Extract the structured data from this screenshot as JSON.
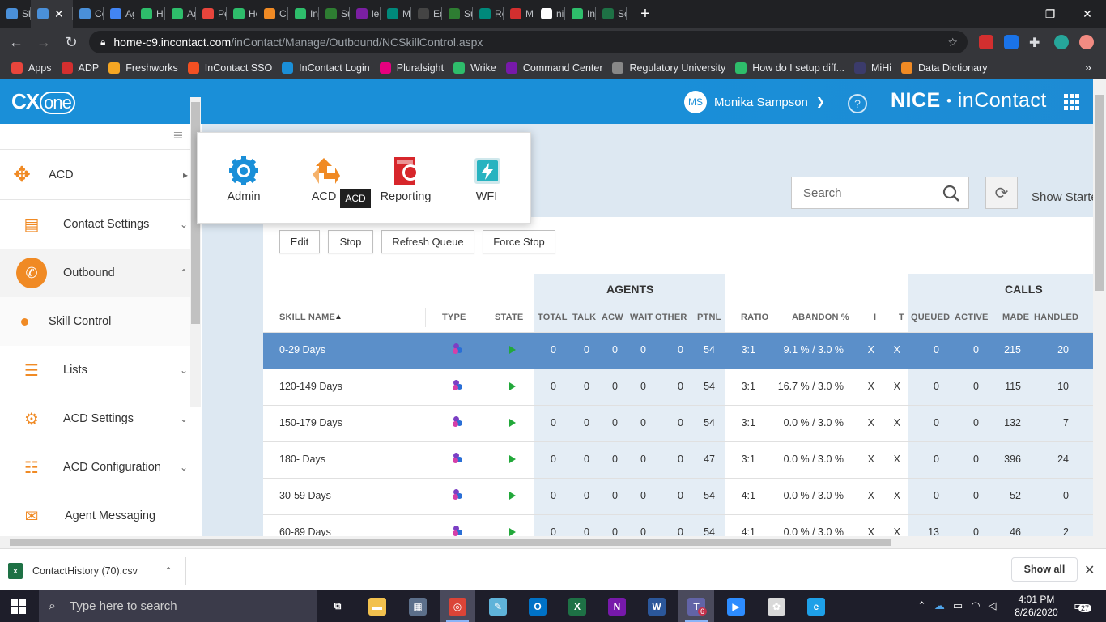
{
  "browser": {
    "tabs": [
      {
        "label": "Skil",
        "color": "#4a90d9",
        "active": false
      },
      {
        "label": "",
        "color": "#4a90d9",
        "active": true
      },
      {
        "label": "Cor",
        "color": "#4a90d9",
        "active": false
      },
      {
        "label": "Age",
        "color": "#4285f4",
        "active": false
      },
      {
        "label": "Hel",
        "color": "#2ebd6b",
        "active": false
      },
      {
        "label": "Adi",
        "color": "#2ebd6b",
        "active": false
      },
      {
        "label": "Per",
        "color": "#e8453c",
        "active": false
      },
      {
        "label": "Hor",
        "color": "#2ebd6b",
        "active": false
      },
      {
        "label": "Cre",
        "color": "#f08a24",
        "active": false
      },
      {
        "label": "Inb",
        "color": "#2ebd6b",
        "active": false
      },
      {
        "label": "Sup",
        "color": "#2e7d32",
        "active": false
      },
      {
        "label": "lea",
        "color": "#7b1fa2",
        "active": false
      },
      {
        "label": "Mic",
        "color": "#00897b",
        "active": false
      },
      {
        "label": "Edi",
        "color": "#444444",
        "active": false
      },
      {
        "label": "Sup",
        "color": "#2e7d32",
        "active": false
      },
      {
        "label": "Rep",
        "color": "#00897b",
        "active": false
      },
      {
        "label": "Mic",
        "color": "#d32f2f",
        "active": false
      },
      {
        "label": "nic",
        "color": "#ffffff",
        "active": false
      },
      {
        "label": "Inb",
        "color": "#2ebd6b",
        "active": false
      },
      {
        "label": "Sch",
        "color": "#1e7145",
        "active": false
      }
    ],
    "active_tab_close": "✕",
    "new_tab": "+",
    "url_host": "home-c9.incontact.com",
    "url_path": "/inContact/Manage/Outbound/NCSkillControl.aspx",
    "bookmarks": [
      {
        "label": "Apps",
        "color": "#e8453c"
      },
      {
        "label": "ADP",
        "color": "#d32f2f"
      },
      {
        "label": "Freshworks",
        "color": "#f5a623"
      },
      {
        "label": "InContact SSO",
        "color": "#f25022"
      },
      {
        "label": "InContact Login",
        "color": "#1a8fd8"
      },
      {
        "label": "Pluralsight",
        "color": "#e6007e"
      },
      {
        "label": "Wrike",
        "color": "#2ebd6b"
      },
      {
        "label": "Command Center",
        "color": "#7719aa"
      },
      {
        "label": "Regulatory University",
        "color": "#888888"
      },
      {
        "label": "How do I setup diff...",
        "color": "#2ebd6b"
      },
      {
        "label": "MiHi",
        "color": "#3b3b6b"
      },
      {
        "label": "Data Dictionary",
        "color": "#f08a24"
      }
    ],
    "bookmarks_more": "»"
  },
  "header": {
    "logo_cx": "CX",
    "logo_one": "one",
    "user_initials": "MS",
    "user_name": "Monika Sampson",
    "brand_nice": "NICE",
    "brand_incontact": "inContact",
    "help": "?"
  },
  "sidebar": {
    "top_item": "ACD",
    "items": [
      {
        "label": "Contact Settings",
        "expanded": false
      },
      {
        "label": "Outbound",
        "expanded": true
      },
      {
        "label": "Skill Control",
        "sub": true
      },
      {
        "label": "Lists",
        "expanded": false
      },
      {
        "label": "ACD Settings",
        "expanded": false
      },
      {
        "label": "ACD Configuration",
        "expanded": false
      },
      {
        "label": "Agent Messaging",
        "expanded": false
      }
    ]
  },
  "app_menu": {
    "items": [
      "Admin",
      "ACD",
      "Reporting",
      "WFI"
    ],
    "tooltip": "ACD"
  },
  "toolbar": {
    "search_placeholder": "Search",
    "show_started": "Show Starte",
    "buttons": [
      "Edit",
      "Stop",
      "Refresh Queue",
      "Force Stop"
    ]
  },
  "table": {
    "group_agents": "AGENTS",
    "group_calls": "CALLS",
    "columns": [
      "SKILL NAME",
      "TYPE",
      "STATE",
      "TOTAL",
      "TALK",
      "ACW",
      "WAIT",
      "OTHER",
      "PTNL",
      "RATIO",
      "ABANDON %",
      "I",
      "T",
      "QUEUED",
      "ACTIVE",
      "MADE",
      "HANDLED"
    ],
    "sort_indicator": "▲",
    "rows": [
      {
        "skill": "0-29 Days",
        "total": "0",
        "talk": "0",
        "acw": "0",
        "wait": "0",
        "other": "0",
        "ptnl": "54",
        "ratio": "3:1",
        "abandon": "9.1 % / 3.0 %",
        "i": "X",
        "t": "X",
        "queued": "0",
        "active": "0",
        "made": "215",
        "handled": "20",
        "selected": true
      },
      {
        "skill": "120-149 Days",
        "total": "0",
        "talk": "0",
        "acw": "0",
        "wait": "0",
        "other": "0",
        "ptnl": "54",
        "ratio": "3:1",
        "abandon": "16.7 % / 3.0 %",
        "i": "X",
        "t": "X",
        "queued": "0",
        "active": "0",
        "made": "115",
        "handled": "10",
        "selected": false
      },
      {
        "skill": "150-179 Days",
        "total": "0",
        "talk": "0",
        "acw": "0",
        "wait": "0",
        "other": "0",
        "ptnl": "54",
        "ratio": "3:1",
        "abandon": "0.0 % / 3.0 %",
        "i": "X",
        "t": "X",
        "queued": "0",
        "active": "0",
        "made": "132",
        "handled": "7",
        "selected": false
      },
      {
        "skill": "180- Days",
        "total": "0",
        "talk": "0",
        "acw": "0",
        "wait": "0",
        "other": "0",
        "ptnl": "47",
        "ratio": "3:1",
        "abandon": "0.0 % / 3.0 %",
        "i": "X",
        "t": "X",
        "queued": "0",
        "active": "0",
        "made": "396",
        "handled": "24",
        "selected": false
      },
      {
        "skill": "30-59 Days",
        "total": "0",
        "talk": "0",
        "acw": "0",
        "wait": "0",
        "other": "0",
        "ptnl": "54",
        "ratio": "4:1",
        "abandon": "0.0 % / 3.0 %",
        "i": "X",
        "t": "X",
        "queued": "0",
        "active": "0",
        "made": "52",
        "handled": "0",
        "selected": false
      },
      {
        "skill": "60-89 Days",
        "total": "0",
        "talk": "0",
        "acw": "0",
        "wait": "0",
        "other": "0",
        "ptnl": "54",
        "ratio": "4:1",
        "abandon": "0.0 % / 3.0 %",
        "i": "X",
        "t": "X",
        "queued": "13",
        "active": "0",
        "made": "46",
        "handled": "2",
        "selected": false
      }
    ]
  },
  "downloads": {
    "file": "ContactHistory (70).csv",
    "show_all": "Show all"
  },
  "taskbar": {
    "search_placeholder": "Type here to search",
    "time": "4:01 PM",
    "date": "8/26/2020",
    "notifications": "27",
    "teams_badge": "6"
  }
}
